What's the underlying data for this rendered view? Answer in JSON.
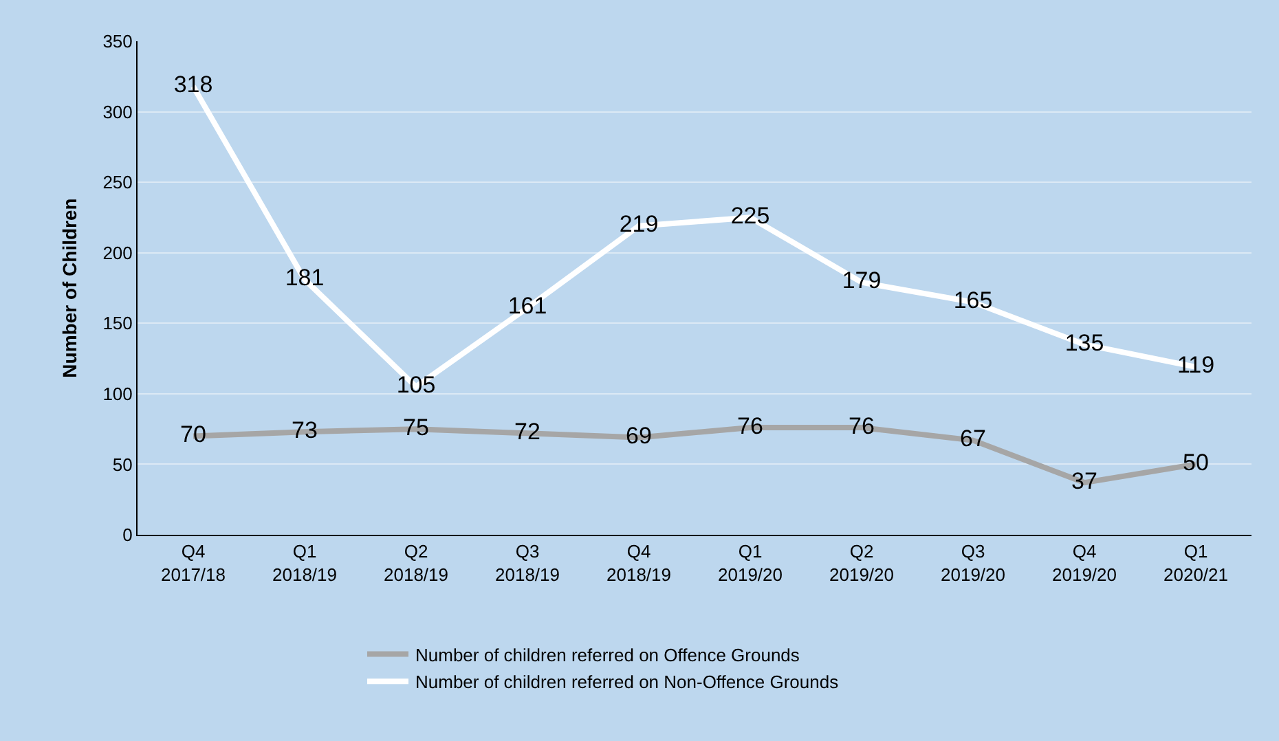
{
  "chart_data": {
    "type": "line",
    "ylabel": "Number of Children",
    "categories": [
      "Q4\n2017/18",
      "Q1\n2018/19",
      "Q2\n2018/19",
      "Q3\n2018/19",
      "Q4\n2018/19",
      "Q1\n2019/20",
      "Q2\n2019/20",
      "Q3\n2019/20",
      "Q4\n2019/20",
      "Q1\n2020/21"
    ],
    "series": [
      {
        "name": "Number of children referred on Offence Grounds",
        "color": "#a6a6a6",
        "values": [
          70,
          73,
          75,
          72,
          69,
          76,
          76,
          67,
          37,
          50
        ]
      },
      {
        "name": "Number of children referred on Non-Offence Grounds",
        "color": "#ffffff",
        "values": [
          318,
          181,
          105,
          161,
          219,
          225,
          179,
          165,
          135,
          119
        ]
      }
    ],
    "ylim": [
      0,
      350
    ],
    "yticks": [
      0,
      50,
      100,
      150,
      200,
      250,
      300,
      350
    ],
    "grid": "y",
    "legend": "bottom",
    "data_labels": true,
    "marker": "none",
    "line_style": "solid"
  }
}
